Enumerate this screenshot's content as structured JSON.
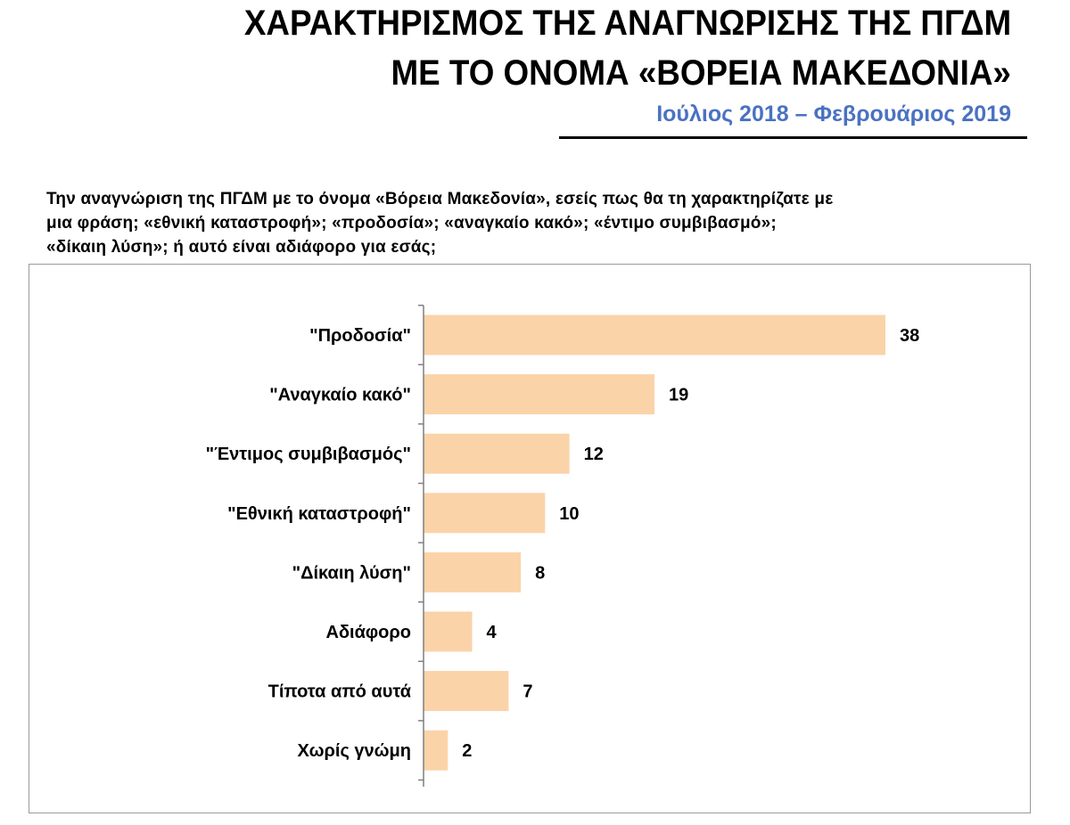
{
  "header": {
    "title_line1": "ΧΑΡΑΚΤΗΡΙΣΜΟΣ ΤΗΣ ΑΝΑΓΝΩΡΙΣΗΣ ΤΗΣ ΠΓΔΜ",
    "title_line2": "ΜΕ ΤΟ ΟΝΟΜΑ «ΒΟΡΕΙΑ ΜΑΚΕΔΟΝΙΑ»",
    "subtitle": "Ιούλιος 2018 – Φεβρουάριος 2019",
    "subtitle_color": "#4a72c2"
  },
  "question": {
    "line1": "Την αναγνώριση της ΠΓΔΜ με το όνομα «Βόρεια Μακεδονία», εσείς πως θα τη χαρακτηρίζατε με",
    "line2": "μια φράση; «εθνική καταστροφή»; «προδοσία»; «αναγκαίο κακό»; «έντιμο συμβιβασμό»;",
    "line3": "«δίκαιη λύση»; ή αυτό είναι αδιάφορο για εσάς;"
  },
  "chart_data": {
    "type": "bar",
    "orientation": "horizontal",
    "categories": [
      "\"Προδοσία\"",
      "\"Αναγκαίο κακό\"",
      "\"Έντιμος συμβιβασμός\"",
      "\"Εθνική καταστροφή\"",
      "\"Δίκαιη λύση\"",
      "Αδιάφορο",
      "Τίποτα από αυτά",
      "Χωρίς γνώμη"
    ],
    "values": [
      38,
      19,
      12,
      10,
      8,
      4,
      7,
      2
    ],
    "bar_color": "#fbd3a9",
    "xlim": [
      0,
      38
    ],
    "grid": false,
    "data_labels": true
  }
}
